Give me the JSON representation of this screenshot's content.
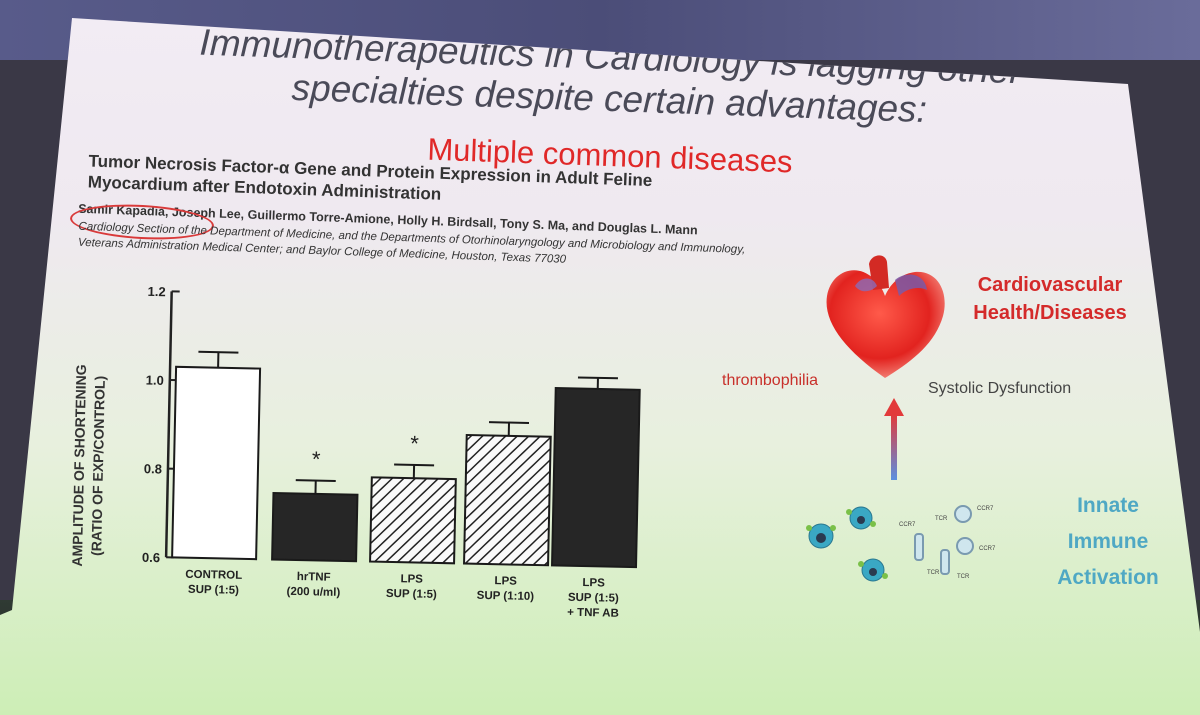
{
  "title": {
    "line1": "Immunotherapeutics in Cardiology is lagging other",
    "line2": "specialties despite certain advantages:",
    "line3": "Multiple common diseases"
  },
  "paper": {
    "title_line1": "Tumor Necrosis Factor-α Gene and Protein Expression in Adult Feline",
    "title_line2": "Myocardium after Endotoxin Administration",
    "authors": "Samir Kapadia, Joseph Lee, Guillermo Torre-Amione, Holly H. Birdsall, Tony S. Ma, and Douglas L. Mann",
    "affil_line1": "Cardiology Section of the Department of Medicine, and the Departments of Otorhinolaryngology and Microbiology and Immunology,",
    "affil_line2": "Veterans Administration Medical Center; and Baylor College of Medicine, Houston, Texas 77030"
  },
  "diagram": {
    "heading_line1": "Cardiovascular",
    "heading_line2": "Health/Diseases",
    "left_label": "thrombophilia",
    "right_label": "Systolic Dysfunction",
    "bottom_line1": "Innate",
    "bottom_line2": "Immune",
    "bottom_line3": "Activation",
    "heart_icon": "heart-icon",
    "arrow_icon": "arrow-up-icon",
    "cells_icon": "immune-cells-icon",
    "colors": {
      "accent_red": "#e02828",
      "innate_blue": "#4fa8c4"
    }
  },
  "chart_data": {
    "type": "bar",
    "ylabel_line1": "AMPLITUDE OF SHORTENING",
    "ylabel_line2": "(RATIO OF EXP/CONTROL)",
    "ylim": [
      0.6,
      1.2
    ],
    "yticks": [
      "0.6",
      "0.8",
      "1.0",
      "1.2"
    ],
    "categories": [
      {
        "line1": "CONTROL",
        "line2": "SUP (1:5)",
        "line3": ""
      },
      {
        "line1": "hrTNF",
        "line2": "(200 u/ml)",
        "line3": ""
      },
      {
        "line1": "LPS",
        "line2": "SUP (1:5)",
        "line3": ""
      },
      {
        "line1": "LPS",
        "line2": "SUP (1:10)",
        "line3": ""
      },
      {
        "line1": "LPS",
        "line2": "SUP (1:5)",
        "line3": "+ TNF AB"
      }
    ],
    "values": [
      1.03,
      0.75,
      0.79,
      0.89,
      1.0
    ],
    "errors": [
      0.035,
      0.03,
      0.03,
      0.03,
      0.025
    ],
    "fills": [
      "white",
      "black",
      "hatch",
      "hatch",
      "black"
    ],
    "significance": [
      "",
      "*",
      "*",
      "",
      ""
    ],
    "grid": false
  }
}
